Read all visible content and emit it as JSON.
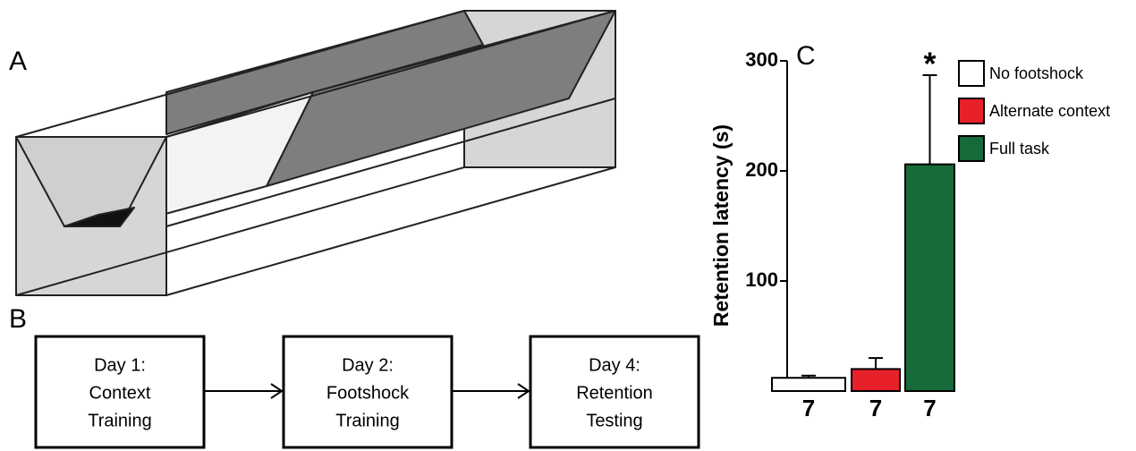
{
  "panels": {
    "a": "A",
    "b": "B",
    "c": "C"
  },
  "flow": {
    "boxes": [
      {
        "lines": [
          "Day 1:",
          "Context",
          "Training"
        ]
      },
      {
        "lines": [
          "Day 2:",
          "Footshock",
          "Training"
        ]
      },
      {
        "lines": [
          "Day 4:",
          "Retention",
          "Testing"
        ]
      }
    ]
  },
  "chart_data": {
    "type": "bar",
    "ylabel": "Retention latency (s)",
    "categories": [
      "7",
      "7",
      "7"
    ],
    "values": [
      12,
      20,
      206
    ],
    "errors": [
      2,
      10,
      81
    ],
    "colors": [
      "#ffffff",
      "#e8202a",
      "#176a3a"
    ],
    "legend": [
      "No footshock",
      "Alternate context",
      "Full task"
    ],
    "annotations": [
      {
        "index": 2,
        "text": "*"
      }
    ],
    "ylim": [
      0,
      300
    ],
    "yticks": [
      100,
      200,
      300
    ]
  }
}
